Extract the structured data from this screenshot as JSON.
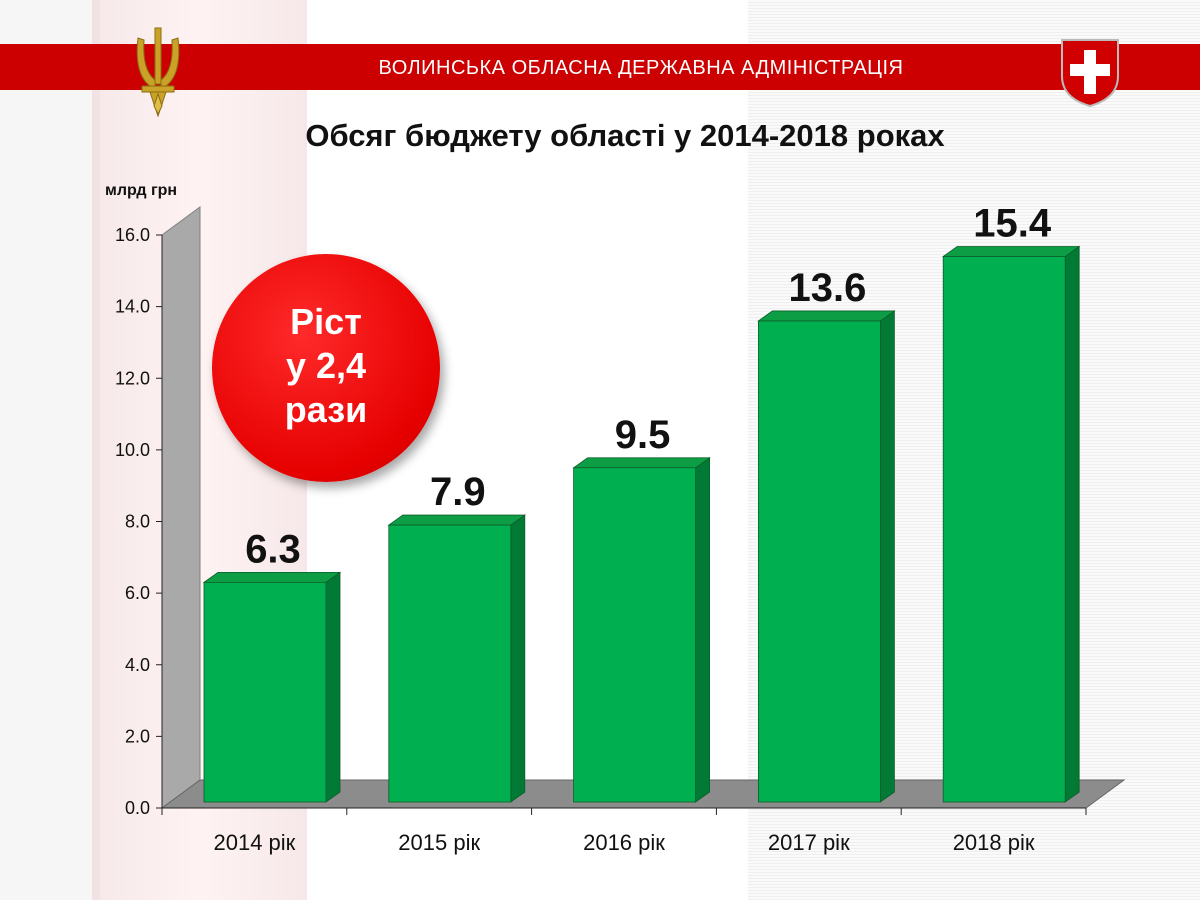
{
  "header": {
    "organization": "ВОЛИНСЬКА ОБЛАСНА ДЕРЖАВНА АДМІНІСТРАЦІЯ"
  },
  "icons": {
    "left": "ukraine-trident-emblem",
    "right": "volyn-coat-of-arms"
  },
  "colors": {
    "header_band": "#cc0000",
    "bar": "#00b050",
    "bar_side": "#007a35",
    "callout": "#e60000"
  },
  "callout": {
    "line1": "Ріст",
    "line2": "у 2,4",
    "line3": "рази"
  },
  "chart_data": {
    "type": "bar",
    "title": "Обсяг бюджету області у 2014-2018 роках",
    "ylabel": "млрд грн",
    "xlabel": "",
    "ylim": [
      0,
      16
    ],
    "yticks": [
      "0.0",
      "2.0",
      "4.0",
      "6.0",
      "8.0",
      "10.0",
      "12.0",
      "14.0",
      "16.0"
    ],
    "categories": [
      "2014 рік",
      "2015 рік",
      "2016 рік",
      "2017 рік",
      "2018 рік"
    ],
    "values": [
      6.3,
      7.9,
      9.5,
      13.6,
      15.4
    ],
    "data_labels": [
      "6.3",
      "7.9",
      "9.5",
      "13.6",
      "15.4"
    ],
    "style": "3d-bar",
    "grid": false
  }
}
